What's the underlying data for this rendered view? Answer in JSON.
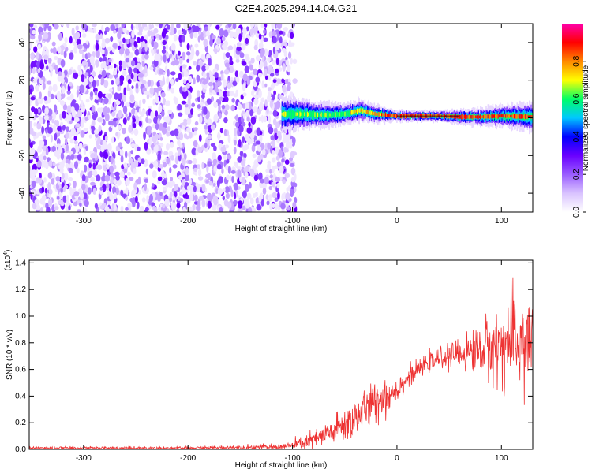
{
  "title": "C2E4.2025.294.14.04.G21",
  "chart_data": [
    {
      "type": "heatmap",
      "title": "C2E4.2025.294.14.04.G21",
      "xlabel": "Height of straight line (km)",
      "ylabel": "Frequency (Hz)",
      "xlim": [
        -352,
        130
      ],
      "ylim": [
        -50,
        50
      ],
      "xticks": [
        -300,
        -200,
        -100,
        0,
        100
      ],
      "yticks": [
        -40,
        -20,
        0,
        20,
        40
      ],
      "noise_region_x": [
        -352,
        -100
      ],
      "signal_band": {
        "x": [
          -110,
          -90,
          -70,
          -50,
          -35,
          -20,
          0,
          20,
          40,
          60,
          80,
          100,
          130
        ],
        "center_hz": [
          2,
          2,
          1.5,
          2,
          4,
          2,
          1,
          1,
          1,
          0.5,
          0.5,
          1,
          0.5
        ],
        "halfwidth_hz": [
          5,
          4,
          3.5,
          3,
          3,
          2.5,
          1.5,
          1.5,
          1.5,
          2,
          2.5,
          3,
          4
        ]
      },
      "colorbar": {
        "label": "Normalized spectral amplitude",
        "range": [
          0,
          1
        ],
        "ticks": [
          0.0,
          0.2,
          0.4,
          0.6,
          0.8
        ],
        "tick_labels": [
          "0.0",
          "0.2",
          "0.4",
          "0.6",
          "0.8"
        ],
        "colors": [
          "#ffffff",
          "#d9c3ff",
          "#9a5cff",
          "#6a00ff",
          "#0000ff",
          "#00c8ff",
          "#00ff66",
          "#ffff00",
          "#ff8800",
          "#ff0000",
          "#ff00aa"
        ]
      }
    },
    {
      "type": "line",
      "xlabel": "Height of straight line (km)",
      "ylabel": "SNR (10 * v/v)",
      "yscale_label": "(x10",
      "yscale_exp": "4",
      "xlim": [
        -352,
        130
      ],
      "ylim": [
        0,
        1.42
      ],
      "xticks": [
        -300,
        -200,
        -100,
        0,
        100
      ],
      "yticks": [
        0.0,
        0.2,
        0.4,
        0.6,
        0.8,
        1.0,
        1.2,
        1.4
      ],
      "ytick_labels": [
        "0.0",
        "0.2",
        "0.4",
        "0.6",
        "0.8",
        "1.0",
        "1.2",
        "1.4"
      ],
      "series": [
        {
          "color": "#ee3333",
          "x": [
            -352,
            -300,
            -200,
            -110,
            -100,
            -90,
            -80,
            -70,
            -60,
            -50,
            -40,
            -30,
            -20,
            -10,
            0,
            10,
            20,
            30,
            40,
            50,
            60,
            70,
            80,
            90,
            100,
            110,
            120,
            130
          ],
          "mean": [
            0.01,
            0.01,
            0.01,
            0.02,
            0.03,
            0.05,
            0.07,
            0.1,
            0.14,
            0.18,
            0.24,
            0.3,
            0.36,
            0.4,
            0.45,
            0.53,
            0.6,
            0.65,
            0.68,
            0.7,
            0.72,
            0.73,
            0.75,
            0.77,
            0.78,
            0.8,
            0.8,
            0.82
          ],
          "spread": [
            0.01,
            0.01,
            0.01,
            0.02,
            0.03,
            0.05,
            0.06,
            0.08,
            0.1,
            0.12,
            0.14,
            0.14,
            0.14,
            0.12,
            0.1,
            0.07,
            0.06,
            0.06,
            0.07,
            0.08,
            0.1,
            0.14,
            0.18,
            0.22,
            0.28,
            0.32,
            0.36,
            0.34
          ]
        }
      ]
    }
  ]
}
